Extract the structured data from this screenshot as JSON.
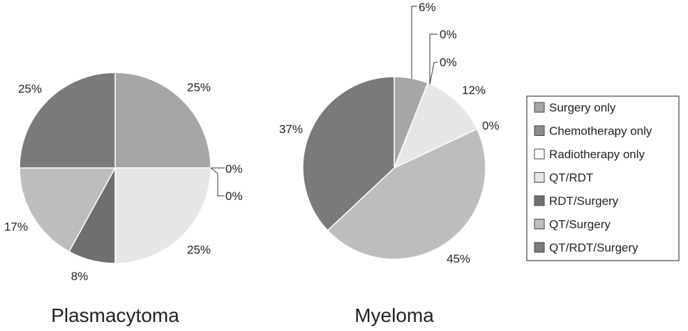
{
  "legend": {
    "colors": [
      "#a6a6a6",
      "#8c8c8c",
      "#ffffff",
      "#e6e6e6",
      "#6f6f6f",
      "#bdbdbd",
      "#7a7a7a"
    ]
  },
  "chart_data": [
    {
      "type": "pie",
      "title": "Plasmacytoma",
      "categories": [
        "Surgery only",
        "Chemotherapy only",
        "Radiotherapy only",
        "QT/RDT",
        "RDT/Surgery",
        "QT/Surgery",
        "QT/RDT/Surgery"
      ],
      "values": [
        25,
        0,
        0,
        25,
        8,
        17,
        25
      ],
      "labels": [
        "25%",
        "0%",
        "0%",
        "25%",
        "8%",
        "17%",
        "25%"
      ]
    },
    {
      "type": "pie",
      "title": "Myeloma",
      "categories": [
        "Surgery only",
        "Chemotherapy only",
        "Radiotherapy only",
        "QT/RDT",
        "RDT/Surgery",
        "QT/Surgery",
        "QT/RDT/Surgery"
      ],
      "values": [
        6,
        0,
        0,
        12,
        0,
        45,
        37
      ],
      "labels": [
        "6%",
        "0%",
        "0%",
        "12%",
        "0%",
        "45%",
        "37%"
      ]
    }
  ]
}
